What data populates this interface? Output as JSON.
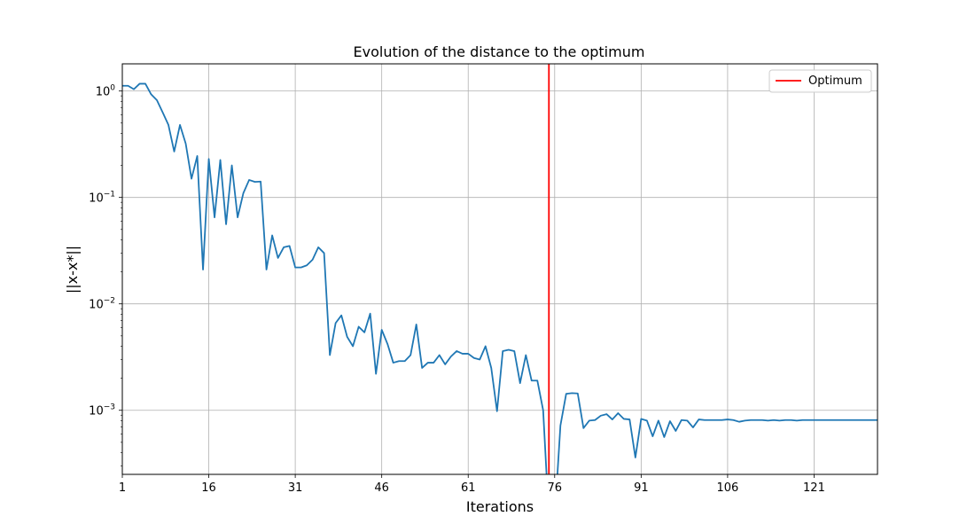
{
  "chart_data": {
    "type": "line",
    "title": "Evolution of the distance to the optimum",
    "xlabel": "Iterations",
    "ylabel": "||x-x*||",
    "yscale": "log",
    "grid": true,
    "legend_position": "top-right",
    "xlim": [
      1,
      132
    ],
    "ylim": [
      0.00025,
      1.8
    ],
    "xticks": [
      1,
      16,
      31,
      46,
      61,
      76,
      91,
      106,
      121
    ],
    "yticks": [
      {
        "value": 1,
        "base": "10",
        "exp": "0"
      },
      {
        "value": 0.1,
        "base": "10",
        "exp": "−1"
      },
      {
        "value": 0.01,
        "base": "10",
        "exp": "−2"
      },
      {
        "value": 0.001,
        "base": "10",
        "exp": "−3"
      }
    ],
    "series": [
      {
        "color": "#1f77b4",
        "x": [
          1,
          2,
          3,
          4,
          5,
          6,
          7,
          8,
          9,
          10,
          11,
          12,
          13,
          14,
          15,
          16,
          17,
          18,
          19,
          20,
          21,
          22,
          23,
          24,
          25,
          26,
          27,
          28,
          29,
          30,
          31,
          32,
          33,
          34,
          35,
          36,
          37,
          38,
          39,
          40,
          41,
          42,
          43,
          44,
          45,
          46,
          47,
          48,
          49,
          50,
          51,
          52,
          53,
          54,
          55,
          56,
          57,
          58,
          59,
          60,
          61,
          62,
          63,
          64,
          65,
          66,
          67,
          68,
          69,
          70,
          71,
          72,
          73,
          74,
          75,
          76,
          77,
          78,
          79,
          80,
          81,
          82,
          83,
          84,
          85,
          86,
          87,
          88,
          89,
          90,
          91,
          92,
          93,
          94,
          95,
          96,
          97,
          98,
          99,
          100,
          101,
          102,
          103,
          104,
          105,
          106,
          107,
          108,
          109,
          110,
          111,
          112,
          113,
          114,
          115,
          116,
          117,
          118,
          119,
          120,
          121,
          122,
          123,
          124,
          125,
          126,
          127,
          128,
          129,
          130,
          131,
          132
        ],
        "y": [
          1.12,
          1.12,
          1.04,
          1.17,
          1.17,
          0.93,
          0.82,
          0.63,
          0.48,
          0.27,
          0.48,
          0.32,
          0.15,
          0.245,
          0.021,
          0.23,
          0.065,
          0.225,
          0.056,
          0.2,
          0.065,
          0.11,
          0.146,
          0.14,
          0.141,
          0.021,
          0.044,
          0.027,
          0.034,
          0.035,
          0.022,
          0.022,
          0.023,
          0.026,
          0.034,
          0.03,
          0.0033,
          0.0066,
          0.0078,
          0.0049,
          0.004,
          0.0061,
          0.0054,
          0.0081,
          0.0022,
          0.0057,
          0.0042,
          0.0028,
          0.0029,
          0.0029,
          0.0033,
          0.0064,
          0.0025,
          0.0028,
          0.0028,
          0.0033,
          0.0027,
          0.0032,
          0.0036,
          0.0034,
          0.0034,
          0.0031,
          0.003,
          0.004,
          0.0025,
          0.00098,
          0.0036,
          0.0037,
          0.0036,
          0.0018,
          0.0033,
          0.0019,
          0.0019,
          0.001,
          1e-07,
          1e-07,
          0.00072,
          0.00143,
          0.00145,
          0.00144,
          0.00068,
          0.0008,
          0.00081,
          0.00089,
          0.00092,
          0.00082,
          0.00094,
          0.00083,
          0.00082,
          0.00036,
          0.00083,
          0.0008,
          0.00057,
          0.0008,
          0.00056,
          0.00079,
          0.00064,
          0.00081,
          0.0008,
          0.00069,
          0.00082,
          0.00081,
          0.00081,
          0.00081,
          0.00081,
          0.00082,
          0.00081,
          0.00078,
          0.0008,
          0.00081,
          0.00081,
          0.00081,
          0.0008,
          0.00081,
          0.0008,
          0.00081,
          0.00081,
          0.0008,
          0.00081,
          0.00081,
          0.00081,
          0.00081,
          0.00081,
          0.00081,
          0.00081,
          0.00081,
          0.00081,
          0.00081,
          0.00081,
          0.00081,
          0.00081,
          0.00081
        ]
      },
      {
        "name": "Optimum",
        "color": "#ff0000",
        "type": "vline",
        "x": 75
      }
    ]
  }
}
